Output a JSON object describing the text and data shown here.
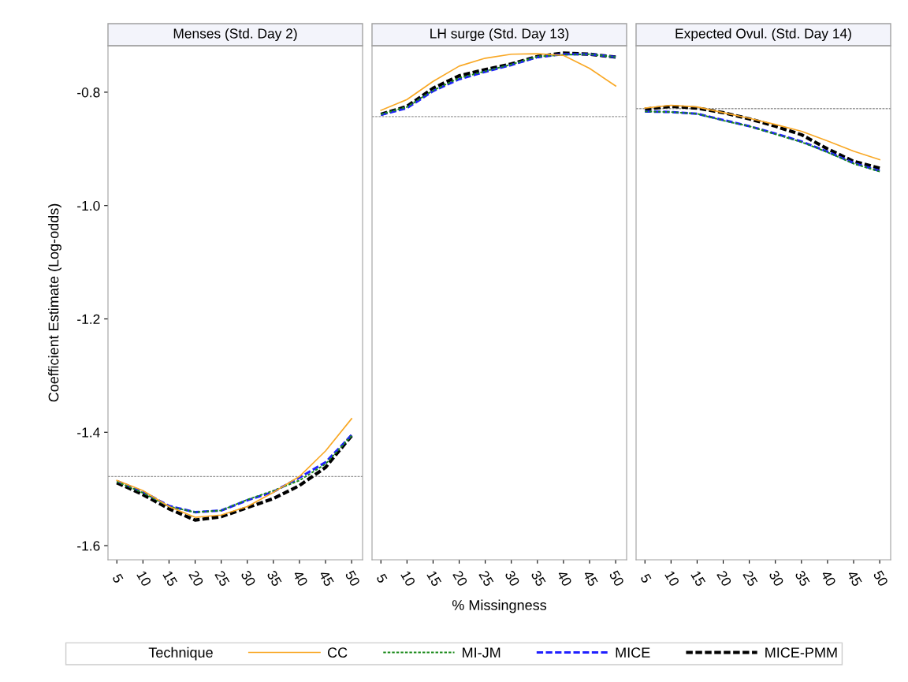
{
  "chart_data": [
    {
      "type": "line",
      "title": "Menses (Std. Day 2)",
      "ylabel": "Coefficient Estimate (Log-odds)",
      "legend_title": "Technique",
      "legend": "bottom",
      "marker": "none",
      "grid": false,
      "x": [
        5,
        10,
        15,
        20,
        25,
        30,
        35,
        40,
        45,
        50
      ],
      "xlim": [
        3.3,
        52.1
      ],
      "xticks": [
        5,
        10,
        15,
        20,
        25,
        30,
        35,
        40,
        45,
        50
      ],
      "ylim": [
        -1.625,
        -0.718
      ],
      "yticks": [
        -1.6,
        -1.4,
        -1.2,
        {
          "value": -1.0,
          "label": "-1.0"
        },
        -0.8
      ],
      "ref_lines": [
        {
          "axis": "y",
          "value": -1.478,
          "color": "#999999",
          "line_style": "dotted"
        }
      ],
      "series": [
        {
          "name": "CC",
          "color": "#f9a825",
          "line_style": "solid",
          "values": [
            -1.485,
            -1.503,
            -1.531,
            -1.55,
            -1.546,
            -1.531,
            -1.506,
            -1.478,
            -1.433,
            -1.376
          ]
        },
        {
          "name": "MI-JM",
          "color": "#1a8a1a",
          "line_style": "dotted",
          "values": [
            -1.487,
            -1.507,
            -1.531,
            -1.541,
            -1.538,
            -1.519,
            -1.503,
            -1.485,
            -1.456,
            -1.406
          ]
        },
        {
          "name": "MICE",
          "color": "#1f1fff",
          "line_style": "dashed",
          "values": [
            -1.486,
            -1.505,
            -1.53,
            -1.541,
            -1.538,
            -1.52,
            -1.505,
            -1.48,
            -1.453,
            -1.405
          ]
        },
        {
          "name": "MICE-PMM",
          "color": "#000000",
          "line_style": "dashed",
          "values": [
            -1.489,
            -1.51,
            -1.535,
            -1.555,
            -1.549,
            -1.533,
            -1.517,
            -1.494,
            -1.462,
            -1.406
          ]
        }
      ]
    },
    {
      "type": "line",
      "title": "LH surge (Std. Day 13)",
      "xlabel": "% Missingness",
      "marker": "none",
      "grid": false,
      "tick_labels": "x",
      "x": [
        5,
        10,
        15,
        20,
        25,
        30,
        35,
        40,
        45,
        50
      ],
      "xlim": [
        3.3,
        52.1
      ],
      "xticks": [
        5,
        10,
        15,
        20,
        25,
        30,
        35,
        40,
        45,
        50
      ],
      "ylim": [
        -1.625,
        -0.718
      ],
      "yticks": [
        -1.6,
        -1.4,
        -1.2,
        -1.0,
        -0.8
      ],
      "ref_lines": [
        {
          "axis": "y",
          "value": -0.843,
          "color": "#999999",
          "line_style": "dotted"
        }
      ],
      "series": [
        {
          "color": "#f9a825",
          "line_style": "solid",
          "values": [
            -0.832,
            -0.813,
            -0.781,
            -0.754,
            -0.74,
            -0.733,
            -0.732,
            -0.735,
            -0.758,
            -0.789
          ]
        },
        {
          "color": "#1a8a1a",
          "line_style": "dotted",
          "values": [
            -0.839,
            -0.826,
            -0.797,
            -0.775,
            -0.763,
            -0.751,
            -0.737,
            -0.734,
            -0.733,
            -0.738
          ]
        },
        {
          "color": "#1f1fff",
          "line_style": "dashed",
          "values": [
            -0.84,
            -0.828,
            -0.798,
            -0.777,
            -0.764,
            -0.752,
            -0.738,
            -0.733,
            -0.733,
            -0.738
          ]
        },
        {
          "color": "#000000",
          "line_style": "dashed",
          "values": [
            -0.839,
            -0.825,
            -0.793,
            -0.771,
            -0.76,
            -0.75,
            -0.737,
            -0.731,
            -0.733,
            -0.738
          ]
        }
      ]
    },
    {
      "type": "line",
      "title": "Expected Ovul. (Std. Day 14)",
      "marker": "none",
      "grid": false,
      "tick_labels": "x",
      "x": [
        5,
        10,
        15,
        20,
        25,
        30,
        35,
        40,
        45,
        50
      ],
      "xlim": [
        3.3,
        52.1
      ],
      "xticks": [
        5,
        10,
        15,
        20,
        25,
        30,
        35,
        40,
        45,
        50
      ],
      "ylim": [
        -1.625,
        -0.718
      ],
      "yticks": [
        -1.6,
        -1.4,
        -1.2,
        -1.0,
        -0.8
      ],
      "ref_lines": [
        {
          "axis": "y",
          "value": -0.829,
          "color": "#999999",
          "line_style": "dotted"
        }
      ],
      "series": [
        {
          "color": "#f9a825",
          "line_style": "solid",
          "values": [
            -0.828,
            -0.823,
            -0.826,
            -0.836,
            -0.846,
            -0.857,
            -0.869,
            -0.886,
            -0.904,
            -0.919
          ]
        },
        {
          "color": "#1a8a1a",
          "line_style": "dotted",
          "values": [
            -0.834,
            -0.835,
            -0.838,
            -0.85,
            -0.86,
            -0.874,
            -0.888,
            -0.906,
            -0.926,
            -0.94
          ]
        },
        {
          "color": "#1f1fff",
          "line_style": "dashed",
          "values": [
            -0.834,
            -0.835,
            -0.838,
            -0.849,
            -0.86,
            -0.873,
            -0.887,
            -0.905,
            -0.925,
            -0.939
          ]
        },
        {
          "color": "#000000",
          "line_style": "dashed",
          "values": [
            -0.83,
            -0.825,
            -0.828,
            -0.836,
            -0.847,
            -0.86,
            -0.875,
            -0.9,
            -0.922,
            -0.934
          ]
        }
      ]
    }
  ]
}
